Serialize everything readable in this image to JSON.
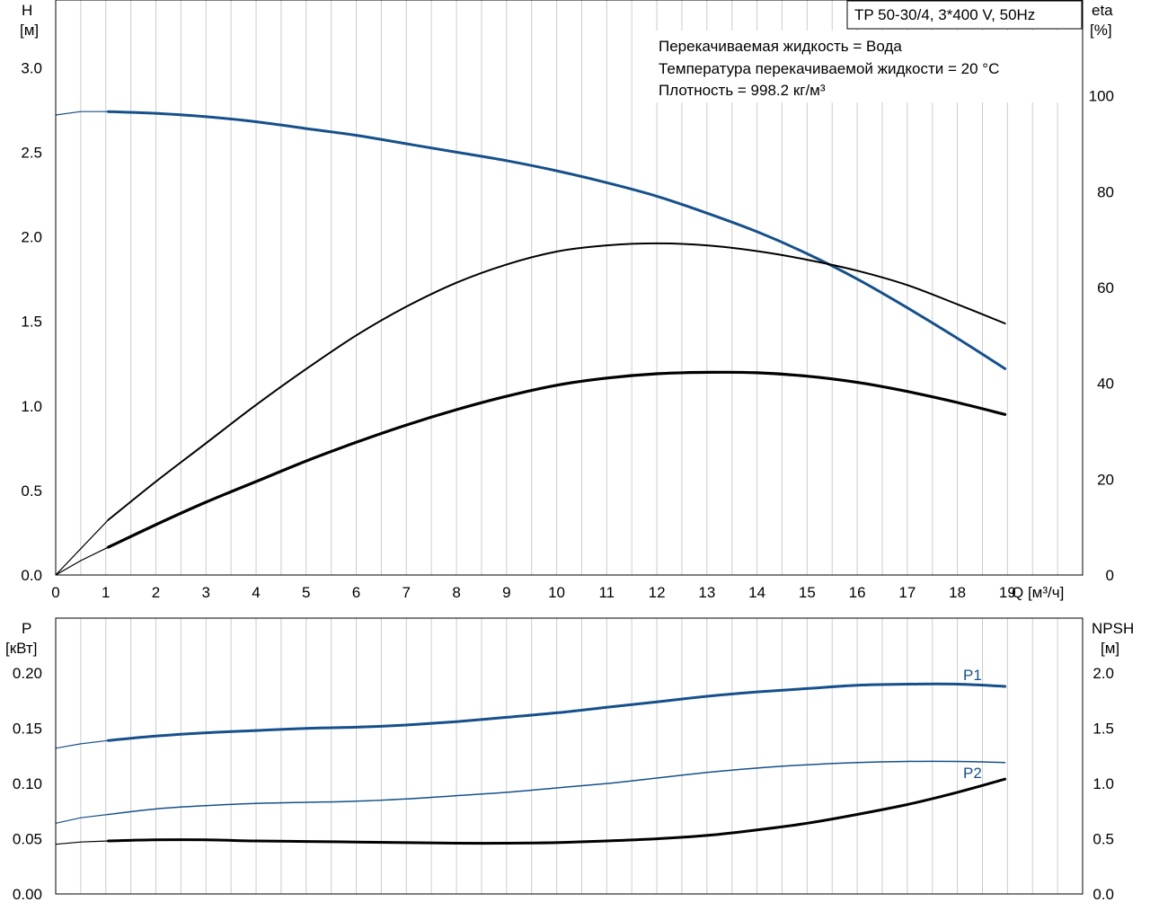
{
  "colors": {
    "blue": "#16508a",
    "black": "#000000",
    "grid": "#cccccc"
  },
  "title_box": "TP 50-30/4, 3*400 V, 50Hz",
  "info_lines": [
    "Перекачиваемая жидкость = Вода",
    "Температура перекачиваемой жидкости = 20 °C",
    "Плотность = 998.2 кг/м³"
  ],
  "chart_data": [
    {
      "type": "line",
      "ylabel_left": [
        "H",
        "[м]"
      ],
      "ylabel_right": [
        "eta",
        "[%]"
      ],
      "xlabel": "Q [м³/ч]",
      "x_ticks": [
        "0",
        "1",
        "2",
        "3",
        "4",
        "5",
        "6",
        "7",
        "8",
        "9",
        "10",
        "11",
        "12",
        "13",
        "14",
        "15",
        "16",
        "17",
        "18",
        "19"
      ],
      "y_ticks_left": [
        "0.0",
        "0.5",
        "1.0",
        "1.5",
        "2.0",
        "2.5",
        "3.0"
      ],
      "y_ticks_right": [
        "0",
        "20",
        "40",
        "60",
        "80",
        "100"
      ],
      "xlim": [
        0,
        20.5
      ],
      "ylim_left": [
        0,
        3.4
      ],
      "ylim_right": [
        0,
        120
      ],
      "grid": true,
      "series": [
        {
          "axis": "left",
          "color": "#16508a",
          "width": 3,
          "x": [
            1.05,
            2,
            3,
            4,
            5,
            6,
            7,
            8,
            9,
            10,
            11,
            12,
            13,
            14,
            15,
            16,
            17,
            18,
            18.95
          ],
          "y": [
            2.74,
            2.73,
            2.71,
            2.68,
            2.64,
            2.6,
            2.55,
            2.5,
            2.45,
            2.39,
            2.32,
            2.24,
            2.14,
            2.03,
            1.9,
            1.75,
            1.58,
            1.4,
            1.22
          ],
          "ext_x": [
            0,
            0.5,
            1.05
          ],
          "ext_y": [
            2.72,
            2.74,
            2.74
          ]
        },
        {
          "axis": "right",
          "color": "#000000",
          "width": 2,
          "x": [
            1.05,
            2,
            3,
            4,
            5,
            6,
            7,
            8,
            9,
            10,
            11,
            12,
            13,
            14,
            15,
            16,
            17,
            18,
            18.95
          ],
          "y": [
            11.5,
            19.5,
            27.5,
            35.5,
            43,
            50,
            56,
            61,
            64.8,
            67.5,
            68.8,
            69.2,
            68.8,
            67.6,
            65.8,
            63.5,
            60.5,
            56.5,
            52.5
          ],
          "ext_x": [
            0,
            0.5,
            1.05
          ],
          "ext_y": [
            0,
            5.5,
            11.5
          ]
        },
        {
          "axis": "right",
          "color": "#000000",
          "width": 3.2,
          "x": [
            1.05,
            2,
            3,
            4,
            5,
            6,
            7,
            8,
            9,
            10,
            11,
            12,
            13,
            14,
            15,
            16,
            17,
            18,
            18.95
          ],
          "y": [
            5.8,
            10.5,
            15.2,
            19.5,
            23.8,
            27.7,
            31.3,
            34.5,
            37.3,
            39.6,
            41.1,
            42.0,
            42.3,
            42.2,
            41.5,
            40.2,
            38.3,
            36.0,
            33.5
          ],
          "ext_x": [
            0,
            0.5,
            1.05
          ],
          "ext_y": [
            0,
            3.0,
            5.8
          ]
        }
      ]
    },
    {
      "type": "line",
      "ylabel_left": [
        "P",
        "[кВт]"
      ],
      "ylabel_right": [
        "NPSH",
        "[м]"
      ],
      "x_ticks": [
        "0",
        "1",
        "2",
        "3",
        "4",
        "5",
        "6",
        "7",
        "8",
        "9",
        "10",
        "11",
        "12",
        "13",
        "14",
        "15",
        "16",
        "17",
        "18",
        "19"
      ],
      "y_ticks_left": [
        "0.00",
        "0.05",
        "0.10",
        "0.15",
        "0.20"
      ],
      "y_ticks_right": [
        "0.0",
        "0.5",
        "1.0",
        "1.5",
        "2.0"
      ],
      "xlim": [
        0,
        20.5
      ],
      "ylim_left": [
        0,
        0.2498
      ],
      "ylim_right": [
        0,
        2.498
      ],
      "grid": true,
      "series": [
        {
          "name": "P1",
          "axis": "left",
          "color": "#16508a",
          "width": 3,
          "x": [
            1.05,
            2,
            3,
            4,
            5,
            6,
            7,
            8,
            9,
            10,
            11,
            12,
            13,
            14,
            15,
            16,
            17,
            18,
            18.95
          ],
          "y": [
            0.139,
            0.143,
            0.146,
            0.148,
            0.15,
            0.151,
            0.153,
            0.156,
            0.16,
            0.164,
            0.169,
            0.174,
            0.179,
            0.183,
            0.186,
            0.189,
            0.19,
            0.19,
            0.188
          ],
          "ext_x": [
            0,
            0.5,
            1.05
          ],
          "ext_y": [
            0.132,
            0.136,
            0.139
          ]
        },
        {
          "axis": "left",
          "color": "#16508a",
          "width": 1.5,
          "x": [
            1.05,
            2,
            3,
            4,
            5,
            6,
            7,
            8,
            9,
            10,
            11,
            12,
            13,
            14,
            15,
            16,
            17,
            18,
            18.95
          ],
          "y": [
            0.072,
            0.077,
            0.08,
            0.082,
            0.083,
            0.084,
            0.086,
            0.089,
            0.092,
            0.096,
            0.1,
            0.105,
            0.11,
            0.114,
            0.117,
            0.119,
            0.12,
            0.12,
            0.119
          ],
          "ext_x": [
            0,
            0.5,
            1.05
          ],
          "ext_y": [
            0.064,
            0.069,
            0.072
          ]
        },
        {
          "name": "P2",
          "axis": "right",
          "color": "#000000",
          "width": 3,
          "x": [
            1.05,
            2,
            3,
            4,
            5,
            6,
            7,
            8,
            9,
            10,
            11,
            12,
            13,
            14,
            15,
            16,
            17,
            18,
            18.95
          ],
          "y": [
            0.48,
            0.49,
            0.49,
            0.48,
            0.475,
            0.47,
            0.465,
            0.46,
            0.46,
            0.465,
            0.48,
            0.5,
            0.53,
            0.58,
            0.64,
            0.72,
            0.81,
            0.92,
            1.04
          ],
          "ext_x": [
            0,
            0.5,
            1.05
          ],
          "ext_y": [
            0.45,
            0.47,
            0.48
          ]
        }
      ]
    }
  ],
  "series_labels": [
    "P1",
    "P2"
  ]
}
